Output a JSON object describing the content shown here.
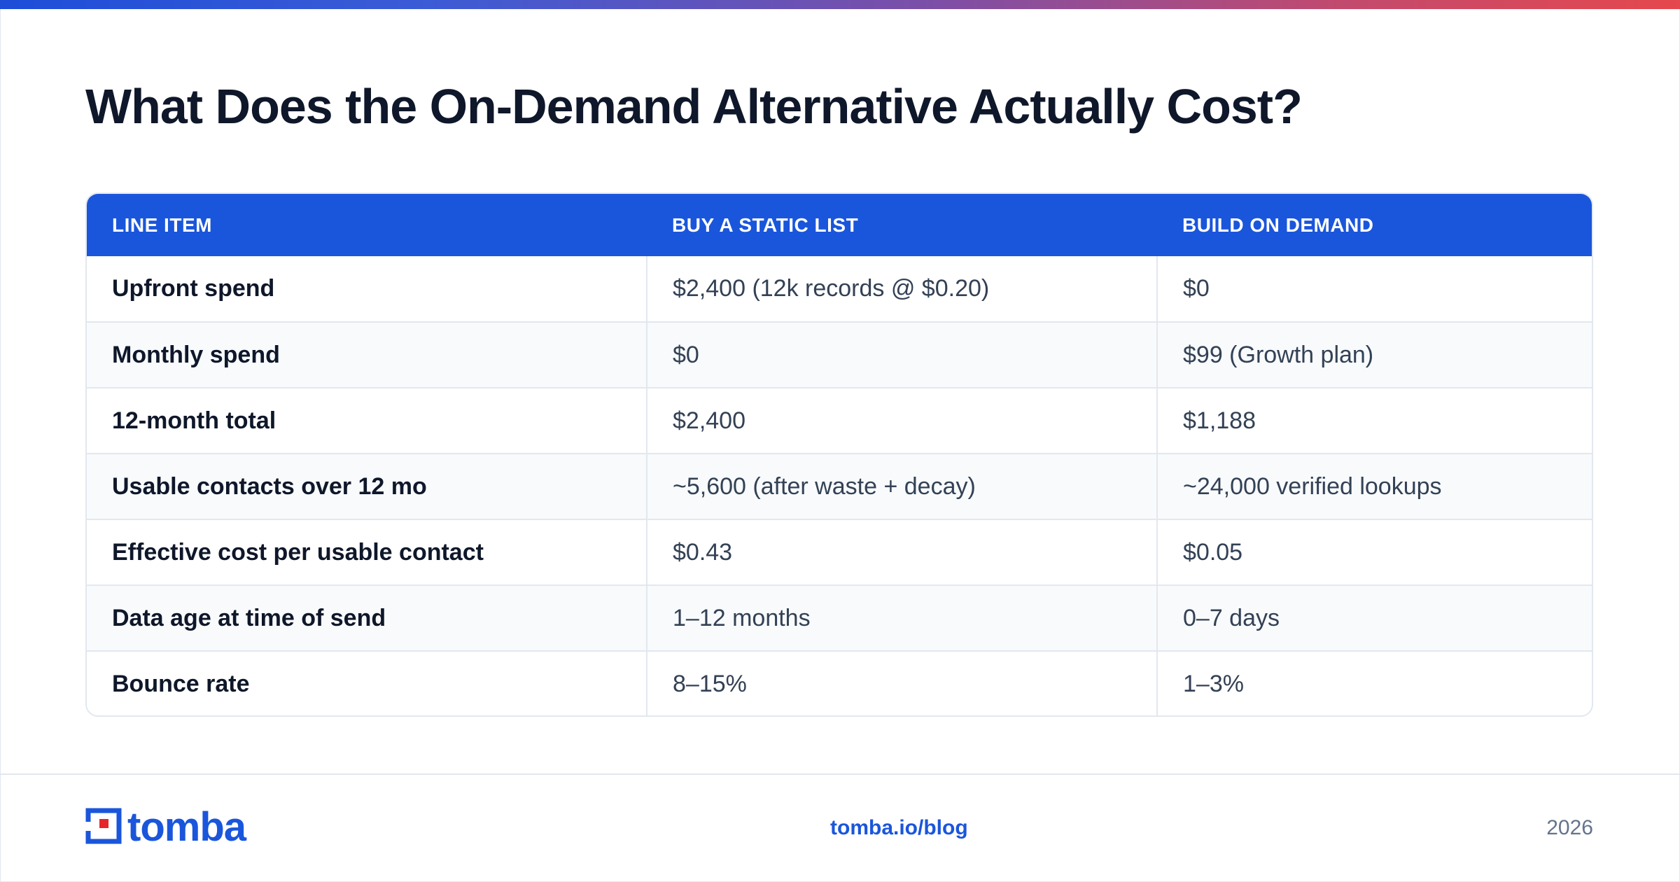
{
  "title": "What Does the On-Demand Alternative Actually Cost?",
  "colors": {
    "accent": "#1a56db",
    "gradient_start": "#1d4ed8",
    "gradient_end": "#e5484d",
    "logo_red": "#e5252a"
  },
  "table": {
    "headers": [
      "LINE ITEM",
      "BUY A STATIC LIST",
      "BUILD ON DEMAND"
    ],
    "rows": [
      [
        "Upfront spend",
        "$2,400 (12k records @ $0.20)",
        "$0"
      ],
      [
        "Monthly spend",
        "$0",
        "$99 (Growth plan)"
      ],
      [
        "12-month total",
        "$2,400",
        "$1,188"
      ],
      [
        "Usable contacts over 12 mo",
        "~5,600 (after waste + decay)",
        "~24,000 verified lookups"
      ],
      [
        "Effective cost per usable contact",
        "$0.43",
        "$0.05"
      ],
      [
        "Data age at time of send",
        "1–12 months",
        "0–7 days"
      ],
      [
        "Bounce rate",
        "8–15%",
        "1–3%"
      ]
    ]
  },
  "footer": {
    "logo_text": "tomba",
    "logo_icon": "tomba-logo-icon",
    "link": "tomba.io/blog",
    "year": "2026"
  }
}
